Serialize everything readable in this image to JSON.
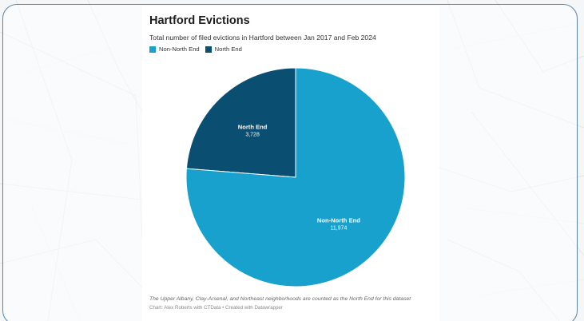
{
  "chart_data": {
    "type": "pie",
    "title": "Hartford Evictions",
    "subtitle": "Total number of filed evictions in Hartford between Jan 2017 and Feb 2024",
    "legend": {
      "placement": "top-left",
      "entries": [
        "Non-North End",
        "North End"
      ]
    },
    "slices": [
      {
        "label": "North End",
        "value": 3728,
        "value_label": "3,728",
        "color": "#0a4f72"
      },
      {
        "label": "Non-North End",
        "value": 11974,
        "value_label": "11,974",
        "color": "#18a1cd"
      }
    ],
    "note": "The Upper Albany, Clay-Arsenal, and Northeast neighborhoods are counted as the North End for this dataset",
    "credit": "Chart: Alex Roberts with CTData • Created with Datawrapper"
  },
  "colors": {
    "north_end": "#0a4f72",
    "non_north_end": "#18a1cd",
    "card_border": "#5b84a8"
  }
}
